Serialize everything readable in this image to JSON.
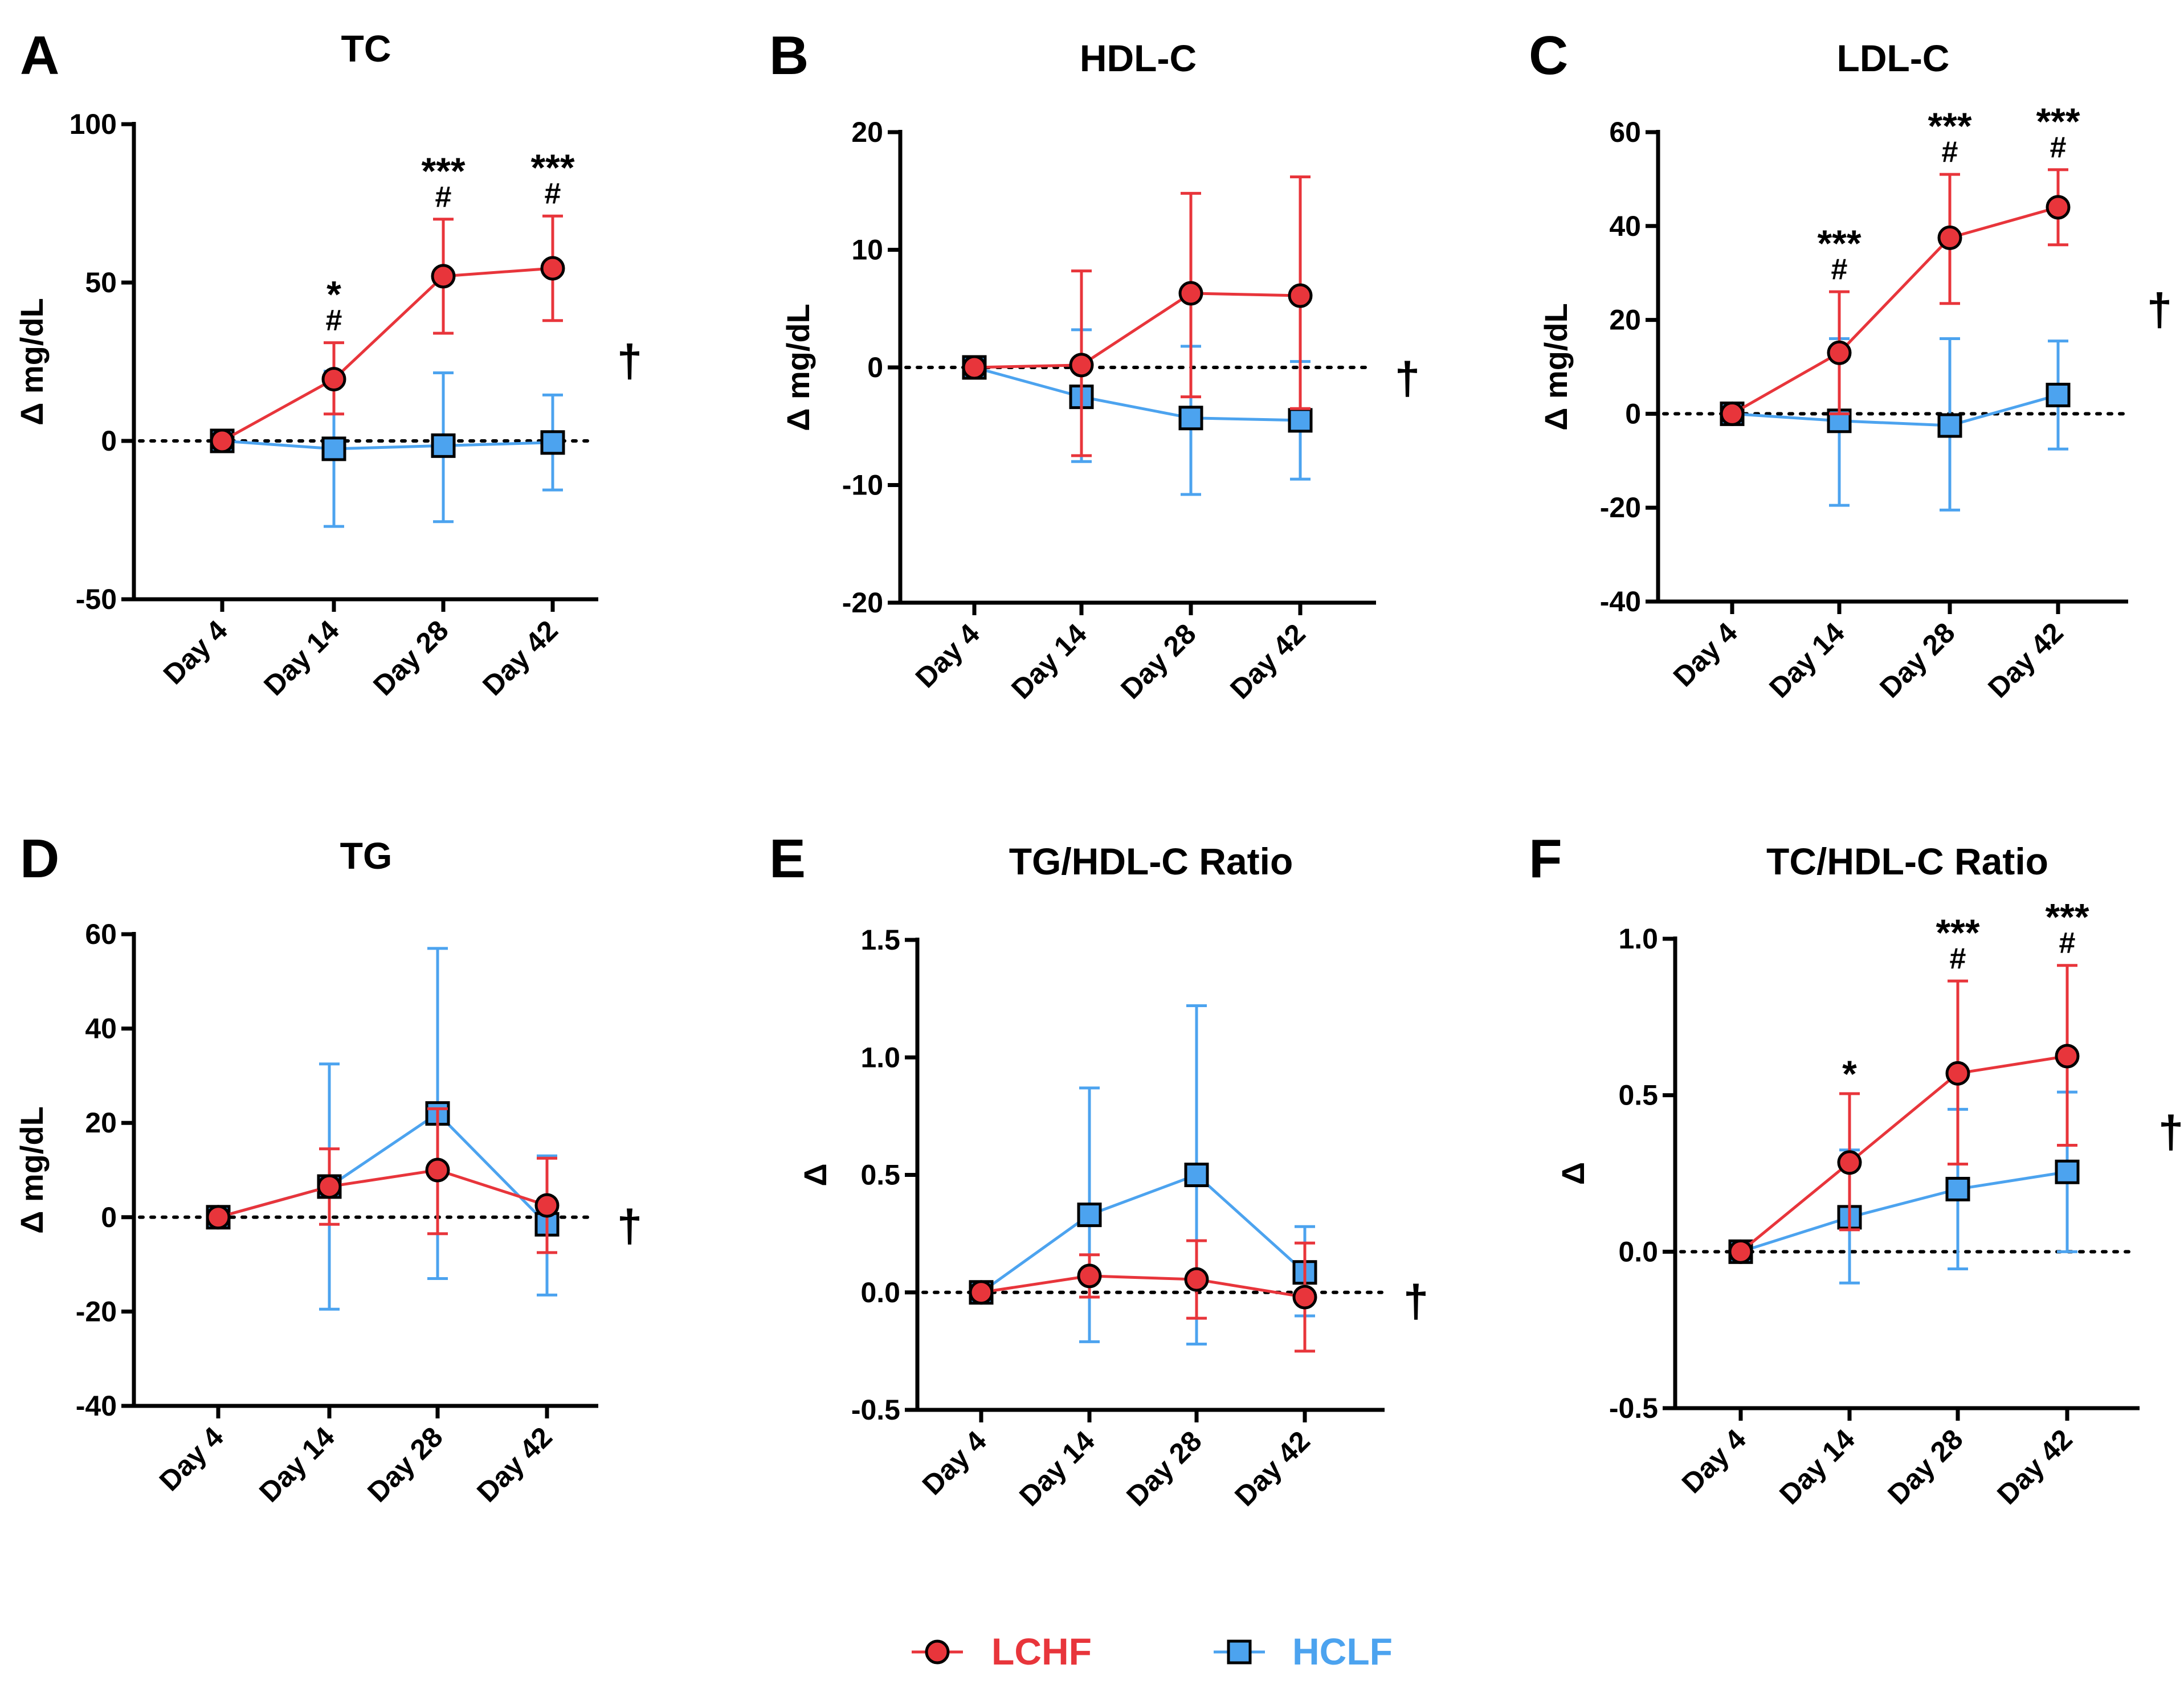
{
  "legend": {
    "entries": [
      {
        "name": "LCHF",
        "color": "#e8353b",
        "marker": "circle"
      },
      {
        "name": "HCLF",
        "color": "#4ca3ef",
        "marker": "square"
      }
    ]
  },
  "chart_data": [
    {
      "letter": "A",
      "title": "TC",
      "type": "line",
      "ylabel": "Δ mg/dL",
      "ylim": [
        -50,
        100
      ],
      "yticks": [
        -50,
        0,
        50,
        100
      ],
      "ytick_labels": [
        "-50",
        "0",
        "50",
        "100"
      ],
      "categories": [
        "Day 4",
        "Day 14",
        "Day 28",
        "Day 42"
      ],
      "series": [
        {
          "name": "LCHF",
          "values": [
            0,
            19.5,
            52,
            54.5
          ],
          "err_low": [
            0,
            8.5,
            34,
            38
          ],
          "err_high": [
            0,
            31,
            70,
            71
          ]
        },
        {
          "name": "HCLF",
          "values": [
            0,
            -2.5,
            -1.5,
            -0.5
          ],
          "err_low": [
            0,
            -27,
            -25.5,
            -15.5
          ],
          "err_high": [
            0,
            22,
            21.5,
            14.5
          ]
        }
      ],
      "annotations": [
        {
          "category": 1,
          "stars": "*",
          "hash": "#",
          "at": 31
        },
        {
          "category": 2,
          "stars": "***",
          "hash": "#",
          "at": 70
        },
        {
          "category": 3,
          "stars": "***",
          "hash": "#",
          "at": 71
        }
      ],
      "dagger": "†",
      "dagger_y": 25
    },
    {
      "letter": "B",
      "title": "HDL-C",
      "type": "line",
      "ylabel": "Δ mg/dL",
      "ylim": [
        -20,
        20
      ],
      "yticks": [
        -20,
        -10,
        0,
        10,
        20
      ],
      "ytick_labels": [
        "-20",
        "-10",
        "0",
        "10",
        "20"
      ],
      "categories": [
        "Day 4",
        "Day 14",
        "Day 28",
        "Day 42"
      ],
      "series": [
        {
          "name": "LCHF",
          "values": [
            0,
            0.2,
            6.3,
            6.1
          ],
          "err_low": [
            0,
            -7.5,
            -2.5,
            -3.5
          ],
          "err_high": [
            0,
            8.2,
            14.8,
            16.2
          ]
        },
        {
          "name": "HCLF",
          "values": [
            0,
            -2.5,
            -4.3,
            -4.5
          ],
          "err_low": [
            0,
            -8,
            -10.8,
            -9.5
          ],
          "err_high": [
            0,
            3.2,
            1.8,
            0.5
          ]
        }
      ],
      "annotations": [],
      "dagger": "†",
      "dagger_y": -1
    },
    {
      "letter": "C",
      "title": "LDL-C",
      "type": "line",
      "ylabel": "Δ mg/dL",
      "ylim": [
        -40,
        60
      ],
      "yticks": [
        -40,
        -20,
        0,
        20,
        40,
        60
      ],
      "ytick_labels": [
        "-40",
        "-20",
        "0",
        "20",
        "40",
        "60"
      ],
      "categories": [
        "Day 4",
        "Day 14",
        "Day 28",
        "Day 42"
      ],
      "series": [
        {
          "name": "LCHF",
          "values": [
            0,
            13,
            37.5,
            44
          ],
          "err_low": [
            0,
            0,
            23.5,
            36
          ],
          "err_high": [
            0,
            26,
            51,
            52
          ]
        },
        {
          "name": "HCLF",
          "values": [
            0,
            -1.5,
            -2.5,
            4
          ],
          "err_low": [
            0,
            -19.5,
            -20.5,
            -7.5
          ],
          "err_high": [
            0,
            16,
            16,
            15.5
          ]
        }
      ],
      "annotations": [
        {
          "category": 1,
          "stars": "***",
          "hash": "#",
          "at": 26
        },
        {
          "category": 2,
          "stars": "***",
          "hash": "#",
          "at": 51
        },
        {
          "category": 3,
          "stars": "***",
          "hash": "#",
          "at": 52
        }
      ],
      "dagger": "†",
      "dagger_y": 22
    },
    {
      "letter": "D",
      "title": "TG",
      "type": "line",
      "ylabel": "Δ mg/dL",
      "ylim": [
        -40,
        60
      ],
      "yticks": [
        -40,
        -20,
        0,
        20,
        40,
        60
      ],
      "ytick_labels": [
        "-40",
        "-20",
        "0",
        "20",
        "40",
        "60"
      ],
      "categories": [
        "Day 4",
        "Day 14",
        "Day 28",
        "Day 42"
      ],
      "series": [
        {
          "name": "LCHF",
          "values": [
            0,
            6.5,
            10,
            2.5
          ],
          "err_low": [
            0,
            -1.5,
            -3.5,
            -7.5
          ],
          "err_high": [
            0,
            14.5,
            23,
            12.5
          ]
        },
        {
          "name": "HCLF",
          "values": [
            0,
            6.5,
            22,
            -1.5
          ],
          "err_low": [
            0,
            -19.5,
            -13,
            -16.5
          ],
          "err_high": [
            0,
            32.5,
            57,
            13
          ]
        }
      ],
      "annotations": [],
      "dagger": "†",
      "dagger_y": -2
    },
    {
      "letter": "E",
      "title": "TG/HDL-C Ratio",
      "type": "line",
      "ylabel": "Δ",
      "ylim": [
        -0.5,
        1.5
      ],
      "yticks": [
        -0.5,
        0,
        0.5,
        1,
        1.5
      ],
      "ytick_labels": [
        "-0.5",
        "0.0",
        "0.5",
        "1.0",
        "1.5"
      ],
      "categories": [
        "Day 4",
        "Day 14",
        "Day 28",
        "Day 42"
      ],
      "series": [
        {
          "name": "LCHF",
          "values": [
            0,
            0.07,
            0.055,
            -0.02
          ],
          "err_low": [
            0,
            -0.02,
            -0.11,
            -0.25
          ],
          "err_high": [
            0,
            0.16,
            0.22,
            0.21
          ]
        },
        {
          "name": "HCLF",
          "values": [
            0,
            0.33,
            0.5,
            0.085
          ],
          "err_low": [
            0,
            -0.21,
            -0.22,
            -0.1
          ],
          "err_high": [
            0,
            0.87,
            1.22,
            0.28
          ]
        }
      ],
      "annotations": [],
      "dagger": "†",
      "dagger_y": -0.04
    },
    {
      "letter": "F",
      "title": "TC/HDL-C Ratio",
      "type": "line",
      "ylabel": "Δ",
      "ylim": [
        -0.5,
        1
      ],
      "yticks": [
        -0.5,
        0,
        0.5,
        1
      ],
      "ytick_labels": [
        "-0.5",
        "0.0",
        "0.5",
        "1.0"
      ],
      "categories": [
        "Day 4",
        "Day 14",
        "Day 28",
        "Day 42"
      ],
      "series": [
        {
          "name": "LCHF",
          "values": [
            0,
            0.285,
            0.57,
            0.625
          ],
          "err_low": [
            0,
            0.07,
            0.28,
            0.34
          ],
          "err_high": [
            0,
            0.505,
            0.865,
            0.915
          ]
        },
        {
          "name": "HCLF",
          "values": [
            0,
            0.11,
            0.2,
            0.255
          ],
          "err_low": [
            0,
            -0.1,
            -0.055,
            0
          ],
          "err_high": [
            0,
            0.325,
            0.455,
            0.51
          ]
        }
      ],
      "annotations": [
        {
          "category": 1,
          "stars": "*",
          "hash": "",
          "at": 0.505
        },
        {
          "category": 2,
          "stars": "***",
          "hash": "#",
          "at": 0.865
        },
        {
          "category": 3,
          "stars": "***",
          "hash": "#",
          "at": 0.915
        }
      ],
      "dagger": "†",
      "dagger_y": 0.38
    }
  ]
}
